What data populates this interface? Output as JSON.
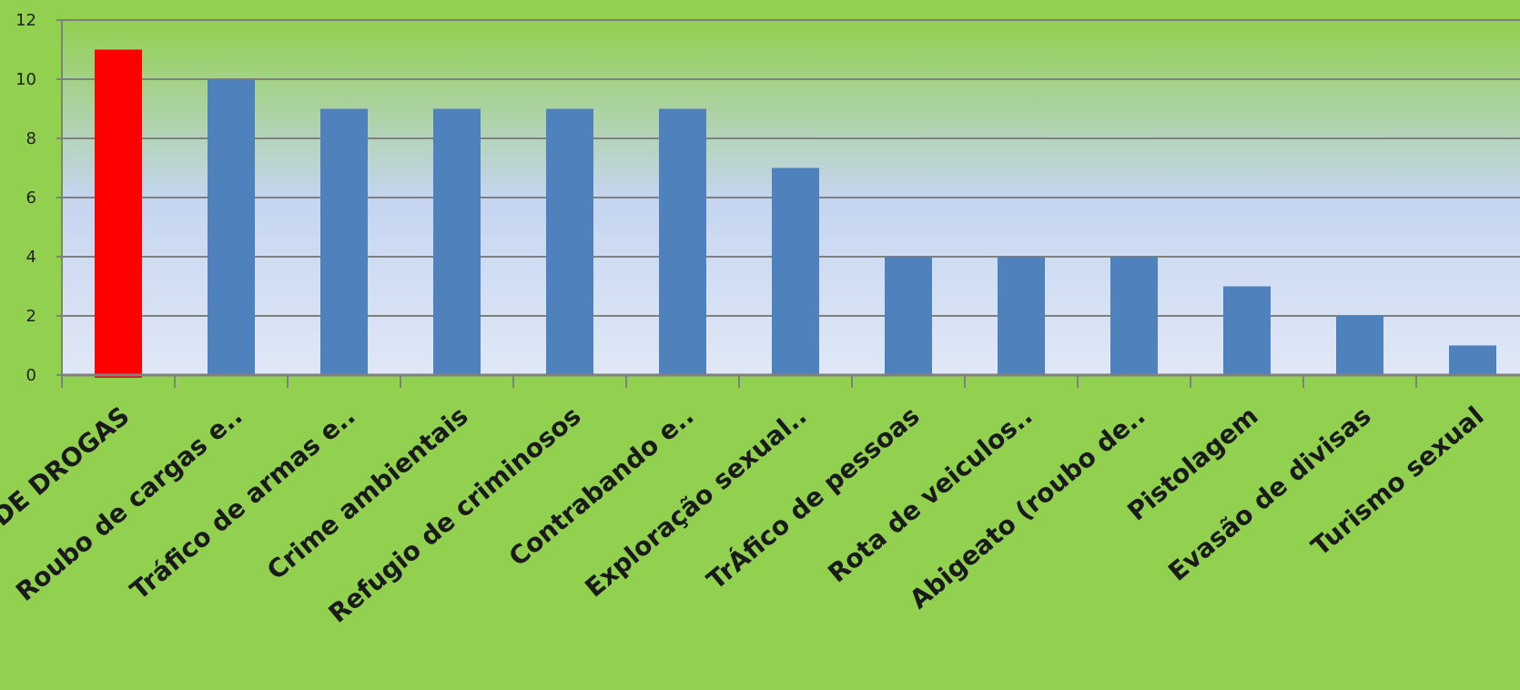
{
  "chart_data": {
    "type": "bar",
    "categories": [
      "TRÁFICO DE DROGAS",
      "Roubo de cargas e..",
      "Tráfico de armas e..",
      "Crime ambientais",
      "Refugio de criminosos",
      "Contrabando e..",
      "Exploração sexual..",
      "TrÁfico de pessoas",
      "Rota de veiculos..",
      "Abigeato (roubo de..",
      "Pistolagem",
      "Evasão de divisas",
      "Turismo sexual"
    ],
    "values": [
      11,
      10,
      9,
      9,
      9,
      9,
      7,
      4,
      4,
      4,
      3,
      2,
      1
    ],
    "highlight_index": 0,
    "ylim": [
      0,
      12
    ],
    "yticks": [
      "0",
      "2",
      "4",
      "6",
      "8",
      "10",
      "12"
    ],
    "grid": true,
    "legend": "none",
    "title": "",
    "xlabel": "",
    "ylabel": ""
  },
  "colors": {
    "background": "#92d050",
    "bar": "#4f81bd",
    "highlight_bar": "#ff0000",
    "gridline": "#808080",
    "plot_gradient_top": "#92d050",
    "plot_gradient_mid": "#c5d5f0",
    "plot_gradient_bottom": "#e0e8f6"
  }
}
